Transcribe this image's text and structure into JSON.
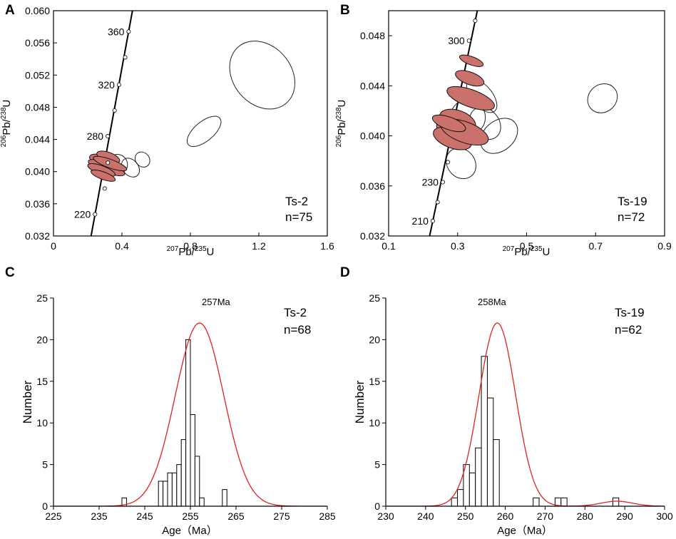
{
  "figure": {
    "panels": [
      "A",
      "B",
      "C",
      "D"
    ]
  },
  "chart_data": [
    {
      "panel": "A",
      "type": "scatter",
      "subtype": "concordia",
      "sample": "Ts-2",
      "n_label": "n=75",
      "xlabel": "207Pb/235U",
      "ylabel": "206Pb/238U",
      "xlim": [
        0,
        1.6
      ],
      "ylim": [
        0.032,
        0.06
      ],
      "xticks": [
        "0",
        "0.4",
        "0.8",
        "1.2",
        "1.6"
      ],
      "yticks": [
        "0.032",
        "0.036",
        "0.040",
        "0.044",
        "0.048",
        "0.052",
        "0.056",
        "0.060"
      ],
      "concordia_ages_labeled": [
        "220",
        "280",
        "320",
        "360"
      ],
      "concordia_markers": [
        {
          "x": 0.243,
          "y": 0.0347
        },
        {
          "x": 0.299,
          "y": 0.0379
        },
        {
          "x": 0.318,
          "y": 0.0411
        },
        {
          "x": 0.317,
          "y": 0.0444
        },
        {
          "x": 0.357,
          "y": 0.0476
        },
        {
          "x": 0.383,
          "y": 0.0508
        },
        {
          "x": 0.419,
          "y": 0.0542
        },
        {
          "x": 0.439,
          "y": 0.0574
        }
      ],
      "ellipses_concordant": [
        {
          "x": 0.3,
          "y": 0.0412,
          "rx": 0.035,
          "ry": 0.002
        },
        {
          "x": 0.31,
          "y": 0.0405,
          "rx": 0.03,
          "ry": 0.0024
        },
        {
          "x": 0.28,
          "y": 0.0402,
          "rx": 0.025,
          "ry": 0.0018
        },
        {
          "x": 0.32,
          "y": 0.0418,
          "rx": 0.028,
          "ry": 0.0015
        },
        {
          "x": 0.29,
          "y": 0.0395,
          "rx": 0.022,
          "ry": 0.0016
        },
        {
          "x": 0.33,
          "y": 0.041,
          "rx": 0.025,
          "ry": 0.0022
        }
      ],
      "ellipses_discordant": [
        {
          "x": 0.38,
          "y": 0.041,
          "rx": 0.05,
          "ry": 0.0012
        },
        {
          "x": 0.45,
          "y": 0.0405,
          "rx": 0.045,
          "ry": 0.0013
        },
        {
          "x": 0.52,
          "y": 0.0415,
          "rx": 0.04,
          "ry": 0.001
        },
        {
          "x": 0.88,
          "y": 0.045,
          "rx": 0.12,
          "ry": 0.0012
        },
        {
          "x": 1.22,
          "y": 0.052,
          "rx": 0.17,
          "ry": 0.0046
        }
      ]
    },
    {
      "panel": "B",
      "type": "scatter",
      "subtype": "concordia",
      "sample": "Ts-19",
      "n_label": "n=72",
      "xlabel": "207Pb/235U",
      "ylabel": "206Pb/238U",
      "xlim": [
        0.1,
        0.9
      ],
      "ylim": [
        0.032,
        0.05
      ],
      "xticks": [
        "0.1",
        "0.3",
        "0.5",
        "0.7",
        "0.9"
      ],
      "yticks": [
        "0.032",
        "0.036",
        "0.040",
        "0.044",
        "0.048"
      ],
      "concordia_ages_labeled": [
        "210",
        "230",
        "300"
      ],
      "concordia_markers": [
        {
          "x": 0.228,
          "y": 0.0332
        },
        {
          "x": 0.242,
          "y": 0.0347
        },
        {
          "x": 0.257,
          "y": 0.0363
        },
        {
          "x": 0.272,
          "y": 0.0379
        },
        {
          "x": 0.333,
          "y": 0.0476
        },
        {
          "x": 0.351,
          "y": 0.0492
        }
      ],
      "ellipses_concordant": [
        {
          "x": 0.295,
          "y": 0.0405,
          "rx": 0.035,
          "ry": 0.0016
        },
        {
          "x": 0.285,
          "y": 0.0398,
          "rx": 0.028,
          "ry": 0.0016
        },
        {
          "x": 0.3,
          "y": 0.0412,
          "rx": 0.03,
          "ry": 0.0015
        },
        {
          "x": 0.32,
          "y": 0.0403,
          "rx": 0.03,
          "ry": 0.002
        },
        {
          "x": 0.275,
          "y": 0.041,
          "rx": 0.018,
          "ry": 0.0014
        },
        {
          "x": 0.338,
          "y": 0.043,
          "rx": 0.025,
          "ry": 0.002
        },
        {
          "x": 0.335,
          "y": 0.0446,
          "rx": 0.018,
          "ry": 0.0012
        },
        {
          "x": 0.34,
          "y": 0.046,
          "rx": 0.012,
          "ry": 0.001
        }
      ],
      "ellipses_discordant": [
        {
          "x": 0.33,
          "y": 0.0415,
          "rx": 0.05,
          "ry": 0.0014
        },
        {
          "x": 0.38,
          "y": 0.041,
          "rx": 0.04,
          "ry": 0.0014
        },
        {
          "x": 0.42,
          "y": 0.04,
          "rx": 0.06,
          "ry": 0.0012
        },
        {
          "x": 0.31,
          "y": 0.0378,
          "rx": 0.04,
          "ry": 0.0013
        },
        {
          "x": 0.37,
          "y": 0.0432,
          "rx": 0.03,
          "ry": 0.0016
        },
        {
          "x": 0.72,
          "y": 0.043,
          "rx": 0.045,
          "ry": 0.0011
        }
      ]
    },
    {
      "panel": "C",
      "type": "bar",
      "subtype": "histogram",
      "sample": "Ts-2",
      "n_label": "n=68",
      "peak_label": "257Ma",
      "xlabel": "Age（Ma）",
      "ylabel": "Number",
      "xlim": [
        225,
        285
      ],
      "ylim": [
        0,
        25
      ],
      "xticks": [
        "225",
        "235",
        "245",
        "255",
        "265",
        "275",
        "285"
      ],
      "yticks": [
        "0",
        "5",
        "10",
        "15",
        "20",
        "25"
      ],
      "bin_width": 1,
      "bins": [
        {
          "x": 240,
          "count": 1
        },
        {
          "x": 248,
          "count": 3
        },
        {
          "x": 249,
          "count": 3
        },
        {
          "x": 250,
          "count": 4
        },
        {
          "x": 251,
          "count": 4
        },
        {
          "x": 252,
          "count": 5
        },
        {
          "x": 253,
          "count": 8
        },
        {
          "x": 254,
          "count": 20
        },
        {
          "x": 255,
          "count": 11
        },
        {
          "x": 256,
          "count": 6
        },
        {
          "x": 257,
          "count": 1
        },
        {
          "x": 262,
          "count": 2
        }
      ],
      "curve": {
        "center": 257,
        "sigma": 5.3,
        "peak": 22
      }
    },
    {
      "panel": "D",
      "type": "bar",
      "subtype": "histogram",
      "sample": "Ts-19",
      "n_label": "n=62",
      "peak_label": "258Ma",
      "xlabel": "Age（Ma）",
      "ylabel": "Number",
      "xlim": [
        230,
        300
      ],
      "ylim": [
        0,
        25
      ],
      "xticks": [
        "230",
        "240",
        "250",
        "260",
        "270",
        "280",
        "290",
        "300"
      ],
      "yticks": [
        "0",
        "5",
        "10",
        "15",
        "20",
        "25"
      ],
      "bin_width": 1.5,
      "bins": [
        {
          "x": 246.5,
          "count": 1
        },
        {
          "x": 248.0,
          "count": 2
        },
        {
          "x": 249.5,
          "count": 5
        },
        {
          "x": 251.0,
          "count": 4
        },
        {
          "x": 252.5,
          "count": 7
        },
        {
          "x": 254.0,
          "count": 18
        },
        {
          "x": 255.5,
          "count": 13
        },
        {
          "x": 257.0,
          "count": 8
        },
        {
          "x": 267.0,
          "count": 1
        },
        {
          "x": 272.5,
          "count": 1
        },
        {
          "x": 274.0,
          "count": 1
        },
        {
          "x": 287.0,
          "count": 1
        }
      ],
      "curve": {
        "center": 258,
        "sigma": 4.6,
        "peak": 22,
        "bump": {
          "center": 288,
          "sigma": 4,
          "peak": 0.6
        }
      }
    }
  ]
}
